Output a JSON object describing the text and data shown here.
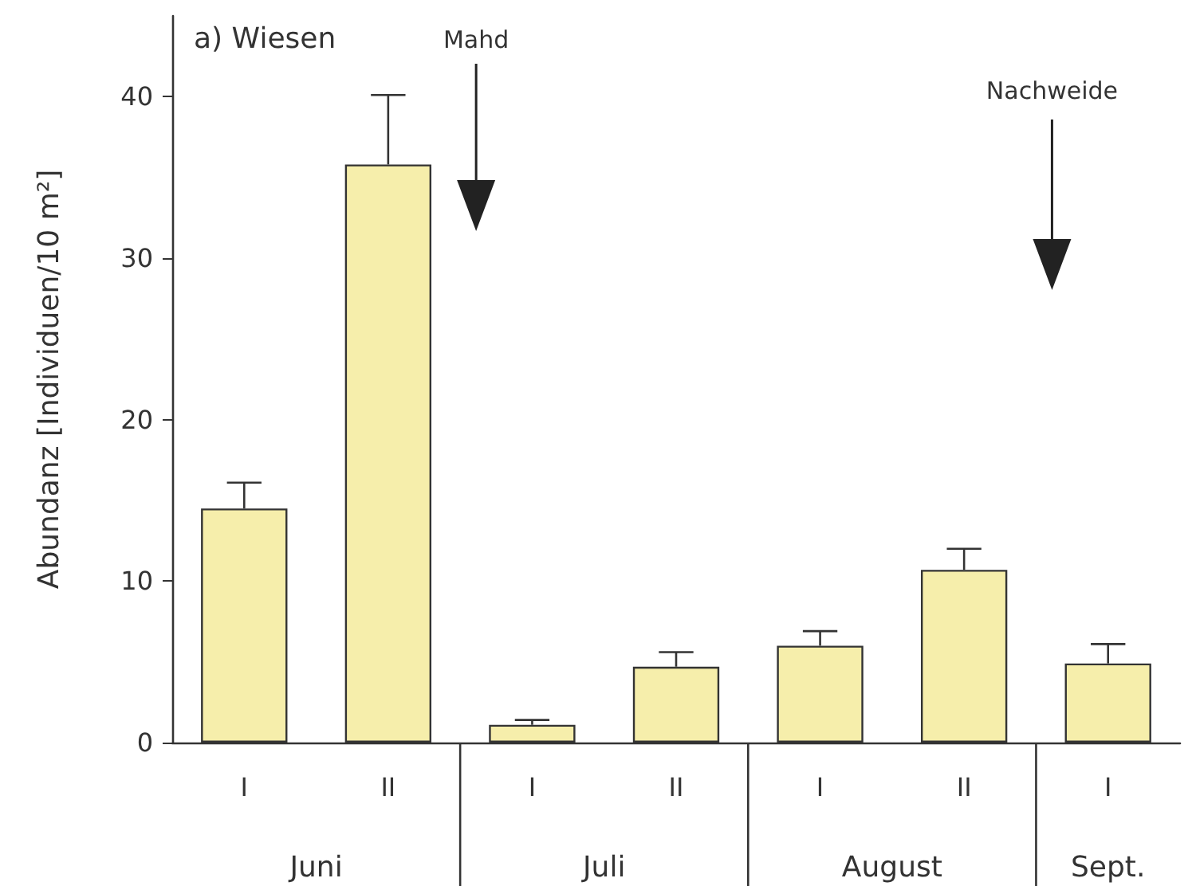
{
  "chart_data": {
    "type": "bar",
    "ylabel": "Abundanz [Individuen/10 m²]",
    "categories": [
      "I",
      "II",
      "I",
      "II",
      "I",
      "II",
      "I"
    ],
    "values": [
      14.5,
      35.8,
      1.1,
      4.7,
      6.0,
      10.7,
      4.9
    ],
    "errors": [
      [
        14.5,
        16.1
      ],
      [
        35.8,
        40.1
      ],
      [
        1.1,
        1.4
      ],
      [
        4.7,
        5.6
      ],
      [
        6.0,
        6.9
      ],
      [
        10.7,
        12.0
      ],
      [
        4.9,
        6.1
      ]
    ],
    "color": "#f6eeab",
    "ylim": [
      0,
      45
    ],
    "yticks": [
      0,
      10,
      20,
      30,
      40
    ],
    "grid": false,
    "annotations": [
      "a) Wiesen",
      "Mahd",
      "Nachweide",
      "Juni",
      "Juli",
      "August",
      "Sept."
    ]
  }
}
